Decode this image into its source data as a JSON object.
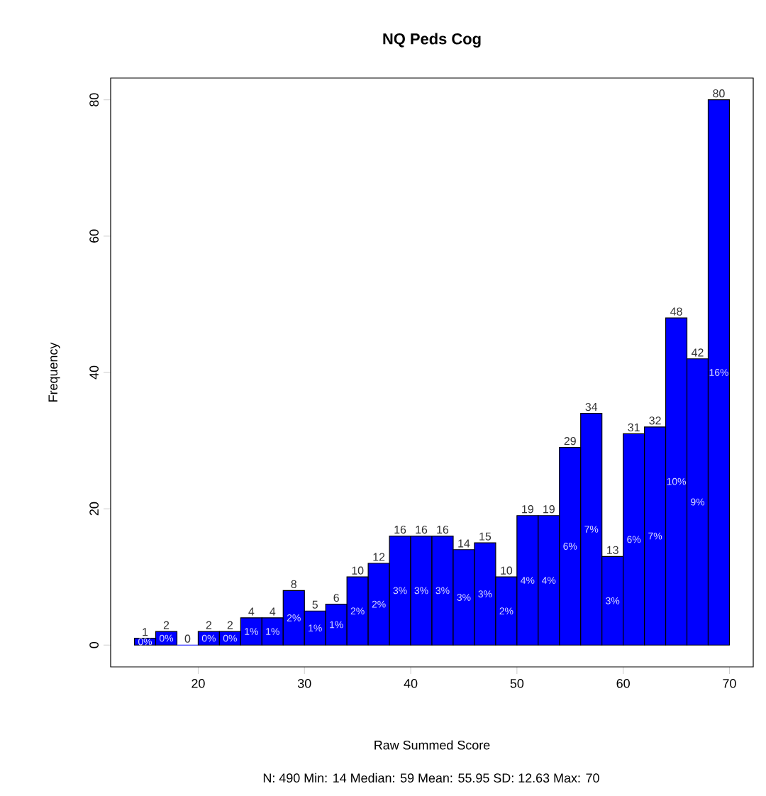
{
  "chart_data": {
    "type": "histogram",
    "title": "NQ Peds Cog",
    "xlabel": "Raw Summed Score",
    "ylabel": "Frequency",
    "bins": [
      14,
      16,
      18,
      20,
      22,
      24,
      26,
      28,
      30,
      32,
      34,
      36,
      38,
      40,
      42,
      44,
      46,
      48,
      50,
      52,
      54,
      56,
      58,
      60,
      62,
      64,
      66,
      68,
      70
    ],
    "values": [
      1,
      2,
      0,
      2,
      2,
      4,
      4,
      8,
      5,
      6,
      10,
      12,
      16,
      16,
      16,
      14,
      15,
      10,
      19,
      19,
      29,
      34,
      13,
      31,
      32,
      48,
      42,
      80
    ],
    "color": "#0000ff",
    "data_labels": true,
    "xlim": [
      11.76,
      72.24
    ],
    "ylim": [
      -3.2,
      83.2
    ],
    "xticks": [
      20,
      30,
      40,
      50,
      60,
      70
    ],
    "yticks": [
      0,
      20,
      40,
      60,
      80
    ],
    "annotations": [
      "0%",
      "0%",
      "0%",
      "0%",
      "1%",
      "1%",
      "2%",
      "1%",
      "1%",
      "2%",
      "2%",
      "3%",
      "3%",
      "3%",
      "3%",
      "3%",
      "2%",
      "4%",
      "4%",
      "6%",
      "7%",
      "3%",
      "6%",
      "7%",
      "10%",
      "9%",
      "16%",
      "N: 490 Min: 14 Median: 59 Mean: 55.95 SD: 12.63 Max: 70"
    ]
  }
}
